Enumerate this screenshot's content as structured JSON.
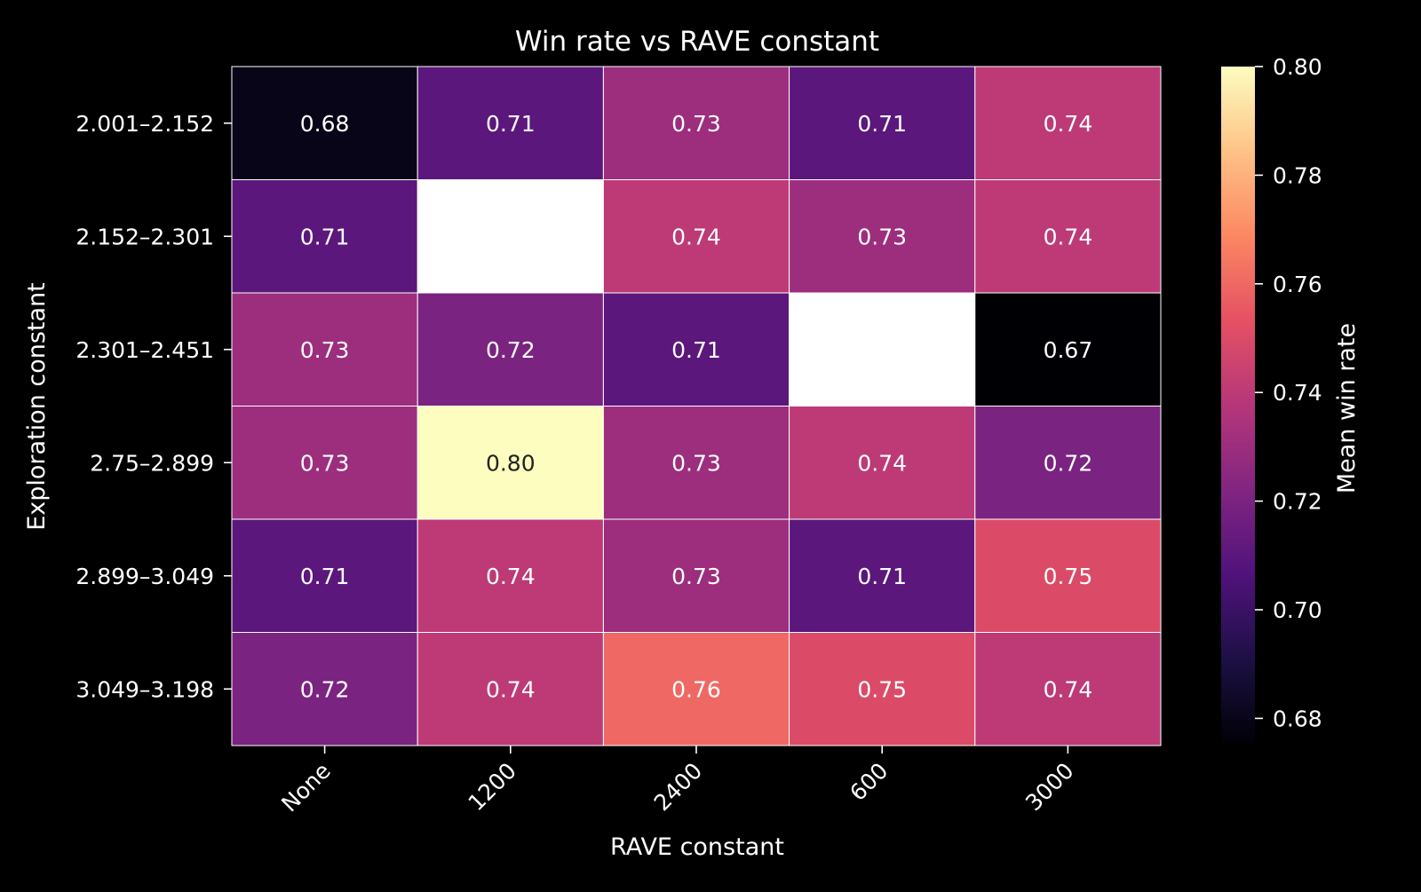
{
  "chart_data": {
    "type": "heatmap",
    "title": "Win rate vs RAVE constant",
    "xlabel": "RAVE constant",
    "ylabel": "Exploration constant",
    "x_categories": [
      "None",
      "1200",
      "2400",
      "600",
      "3000"
    ],
    "y_categories": [
      "2.001–2.152",
      "2.152–2.301",
      "2.301–2.451",
      "2.75–2.899",
      "2.899–3.049",
      "3.049–3.198"
    ],
    "values": [
      [
        0.68,
        0.71,
        0.73,
        0.71,
        0.74
      ],
      [
        0.71,
        null,
        0.74,
        0.73,
        0.74
      ],
      [
        0.73,
        0.72,
        0.71,
        null,
        0.67
      ],
      [
        0.73,
        0.8,
        0.73,
        0.74,
        0.72
      ],
      [
        0.71,
        0.74,
        0.73,
        0.71,
        0.75
      ],
      [
        0.72,
        0.74,
        0.76,
        0.75,
        0.74
      ]
    ],
    "cell_labels": [
      [
        "0.68",
        "0.71",
        "0.73",
        "0.71",
        "0.74"
      ],
      [
        "0.71",
        "",
        "0.74",
        "0.73",
        "0.74"
      ],
      [
        "0.73",
        "0.72",
        "0.71",
        "",
        "0.67"
      ],
      [
        "0.73",
        "0.80",
        "0.73",
        "0.74",
        "0.72"
      ],
      [
        "0.71",
        "0.74",
        "0.73",
        "0.71",
        "0.75"
      ],
      [
        "0.72",
        "0.74",
        "0.76",
        "0.75",
        "0.74"
      ]
    ],
    "colormap": "magma",
    "missing_color": "#ffffff",
    "colorbar": {
      "label": "Mean win rate",
      "range": [
        0.675,
        0.8
      ],
      "ticks": [
        0.68,
        0.7,
        0.72,
        0.74,
        0.76,
        0.78,
        0.8
      ],
      "tick_labels": [
        "0.68",
        "0.70",
        "0.72",
        "0.74",
        "0.76",
        "0.78",
        "0.80"
      ],
      "placement": "right"
    },
    "background": "#000000",
    "text_color": "#ffffff",
    "grid_line_color": "#ffffff"
  }
}
